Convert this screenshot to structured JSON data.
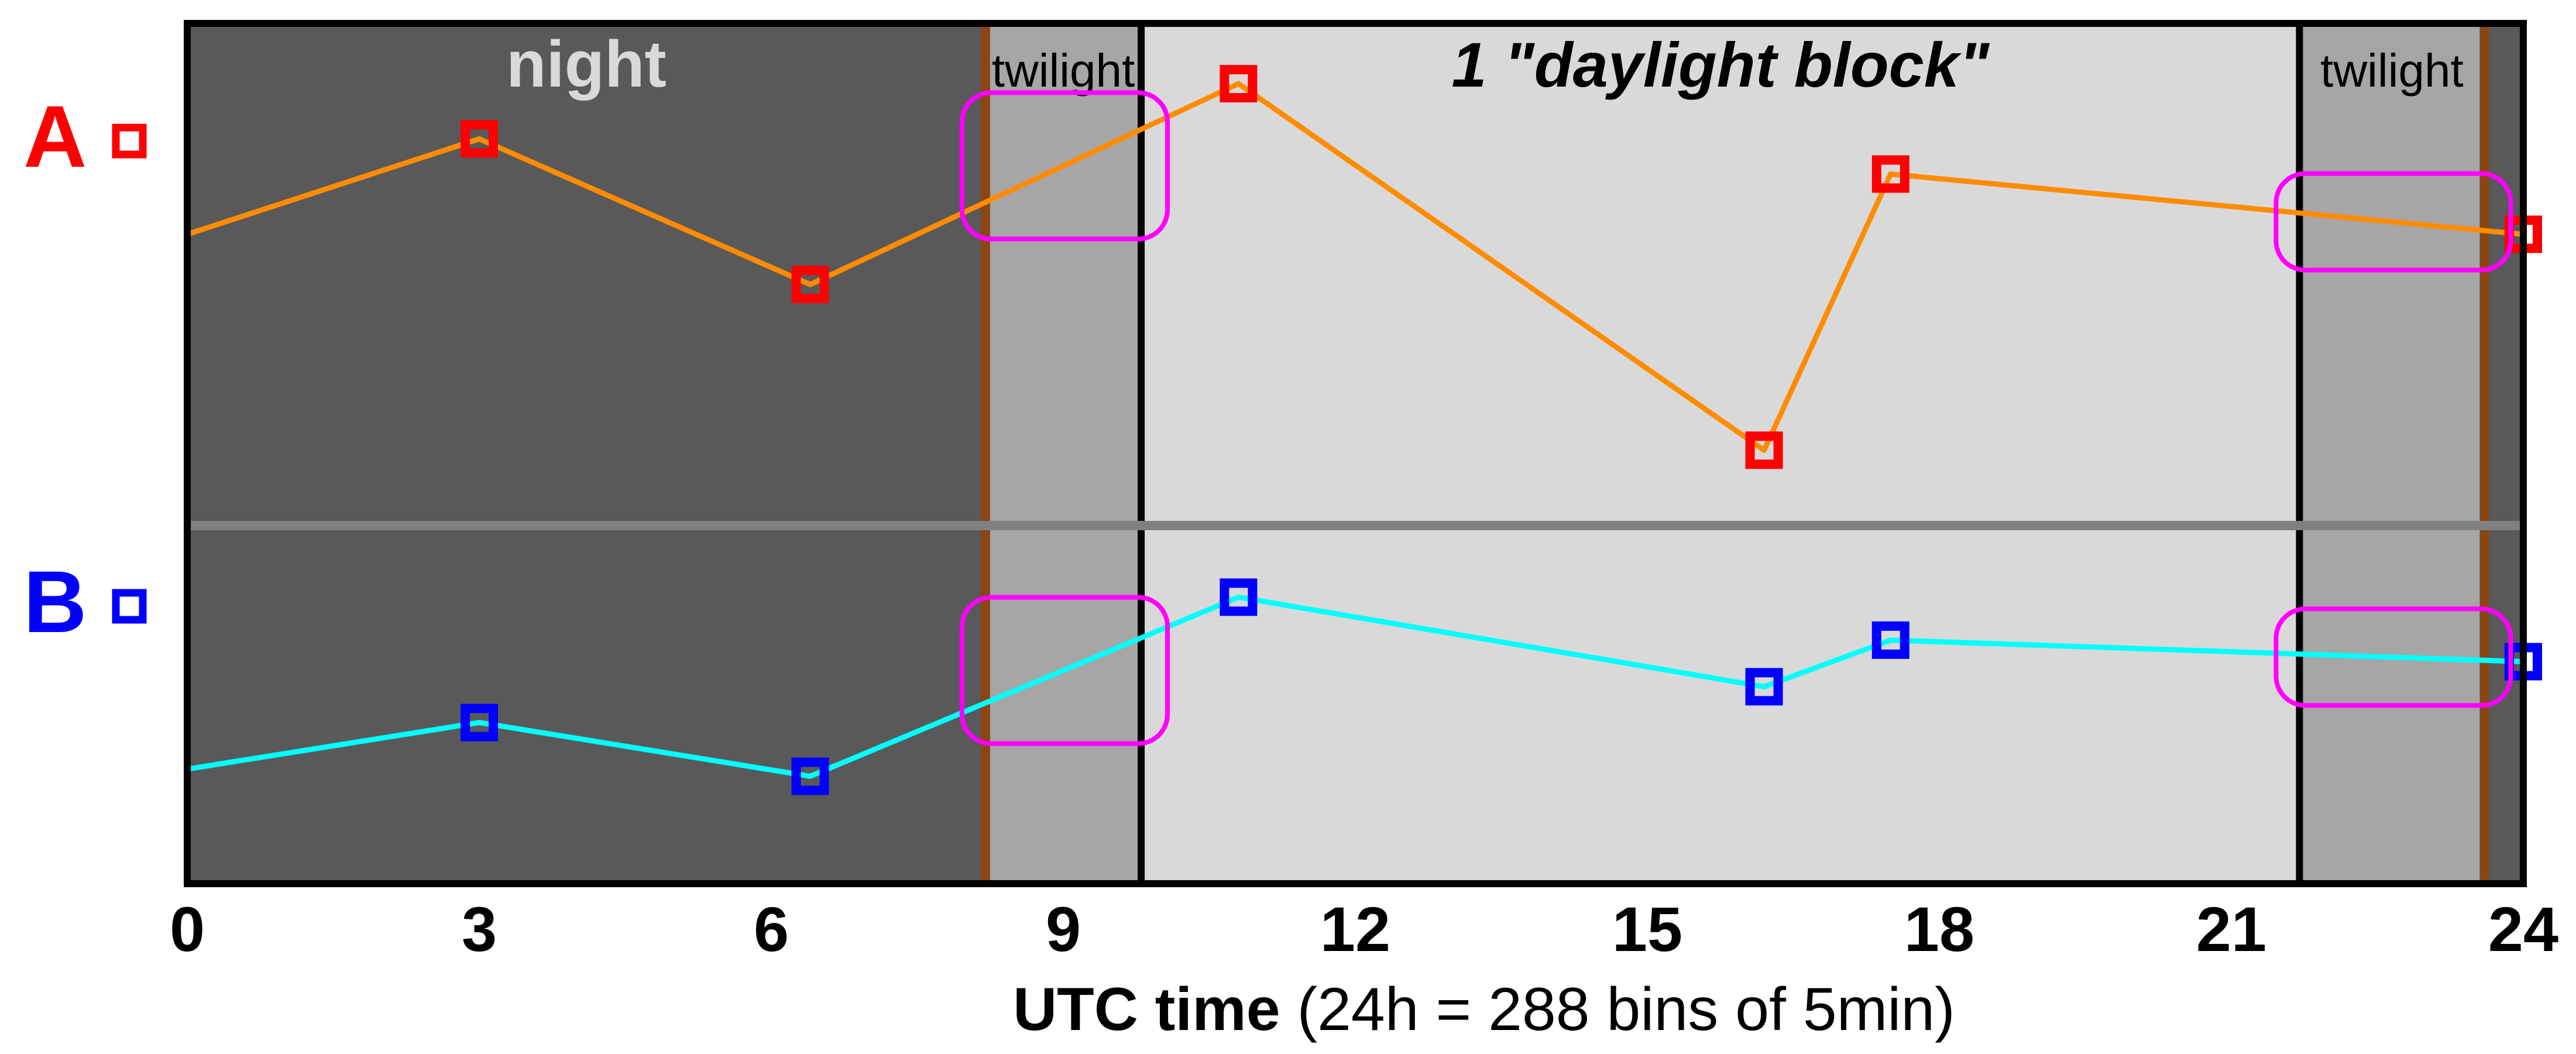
{
  "chart_data": {
    "type": "line",
    "x_unit": "h",
    "xlim": [
      0,
      24
    ],
    "x_ticks": [
      0,
      3,
      6,
      9,
      12,
      15,
      18,
      21,
      24
    ],
    "xlabel": {
      "bold": "UTC time",
      "normal": "(24h = 288 bins of 5min)"
    },
    "bands": [
      {
        "name": "night",
        "start": 0,
        "end": 8.2,
        "label": "night",
        "color": "#595959"
      },
      {
        "name": "twilight",
        "start": 8.2,
        "end": 9.8,
        "label": "twilight",
        "color": "#a6a6a6"
      },
      {
        "name": "daylight",
        "start": 9.8,
        "end": 21.7,
        "label": "1 \"daylight block\"",
        "color": "#d9d9d9"
      },
      {
        "name": "twilight",
        "start": 21.7,
        "end": 23.6,
        "label": "twilight",
        "color": "#a6a6a6"
      },
      {
        "name": "night",
        "start": 23.6,
        "end": 24,
        "label": "",
        "color": "#595959"
      }
    ],
    "series": [
      {
        "name": "A",
        "line_color": "#ff8c00",
        "marker_color": "#ff0000",
        "x": [
          0,
          3.0,
          6.4,
          10.8,
          16.2,
          17.5,
          24
        ],
        "y": [
          0.58,
          0.77,
          0.48,
          0.88,
          0.15,
          0.7,
          0.58
        ],
        "markers": [
          false,
          true,
          true,
          true,
          true,
          true,
          true
        ]
      },
      {
        "name": "B",
        "line_color": "#00ffff",
        "marker_color": "#0000ff",
        "x": [
          0,
          3.0,
          6.4,
          10.8,
          16.2,
          17.5,
          24
        ],
        "y": [
          0.32,
          0.45,
          0.3,
          0.8,
          0.55,
          0.68,
          0.62
        ],
        "markers": [
          false,
          true,
          true,
          true,
          true,
          true,
          true
        ]
      }
    ],
    "highlights": [
      {
        "series": "A",
        "x_start": 8.2,
        "x_end": 9.8
      },
      {
        "series": "A",
        "x_start": 21.7,
        "x_end": 23.6
      },
      {
        "series": "B",
        "x_start": 8.2,
        "x_end": 9.8
      },
      {
        "series": "B",
        "x_start": 21.7,
        "x_end": 23.6
      }
    ],
    "colors": {
      "highlight": "#ff00ff",
      "transition_line": "#8b4513",
      "separator": "#808080",
      "label_A": "#ff0000",
      "label_B": "#0000ff"
    }
  }
}
